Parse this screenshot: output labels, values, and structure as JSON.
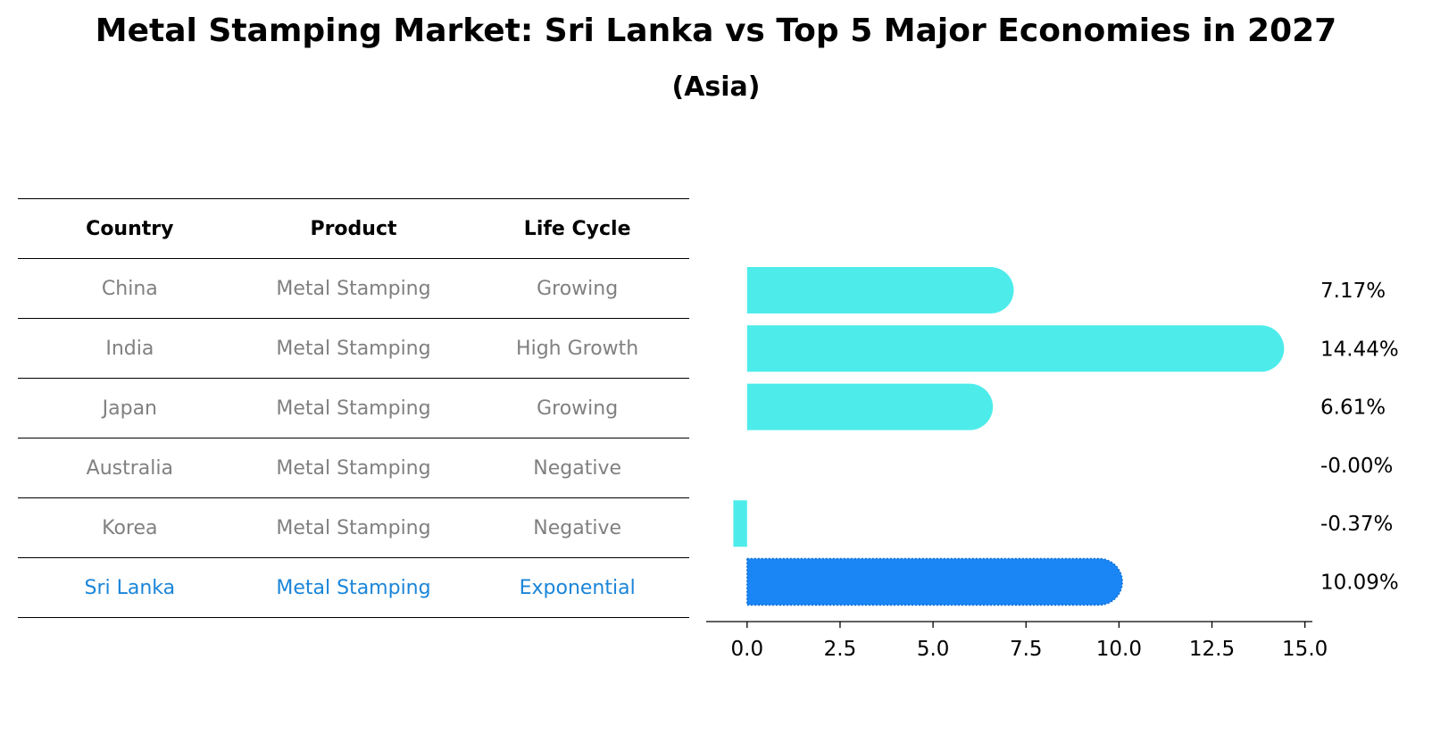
{
  "title": "Metal Stamping Market: Sri Lanka vs Top 5 Major Economies in 2027",
  "subtitle": "(Asia)",
  "table": {
    "headers": [
      "Country",
      "Product",
      "Life Cycle"
    ],
    "rows": [
      {
        "country": "China",
        "product": "Metal Stamping",
        "life_cycle": "Growing"
      },
      {
        "country": "India",
        "product": "Metal Stamping",
        "life_cycle": "High Growth"
      },
      {
        "country": "Japan",
        "product": "Metal Stamping",
        "life_cycle": "Growing"
      },
      {
        "country": "Australia",
        "product": "Metal Stamping",
        "life_cycle": "Negative"
      },
      {
        "country": "Korea",
        "product": "Metal Stamping",
        "life_cycle": "Negative"
      },
      {
        "country": "Sri Lanka",
        "product": "Metal Stamping",
        "life_cycle": "Exponential"
      }
    ]
  },
  "colors": {
    "bar": "#4deceb",
    "highlight_bar": "#1a85f5",
    "highlight_text": "#1a85d9",
    "muted_text": "#808080"
  },
  "chart_data": {
    "type": "bar",
    "orientation": "horizontal",
    "categories": [
      "China",
      "India",
      "Japan",
      "Australia",
      "Korea",
      "Sri Lanka"
    ],
    "values": [
      7.17,
      14.44,
      6.61,
      -0.0,
      -0.37,
      10.09
    ],
    "value_labels": [
      "7.17%",
      "14.44%",
      "6.61%",
      "-0.00%",
      "-0.37%",
      "10.09%"
    ],
    "highlight": "Sri Lanka",
    "xlim": [
      -1.1,
      15.2
    ],
    "xticks": [
      0.0,
      2.5,
      5.0,
      7.5,
      10.0,
      12.5,
      15.0
    ],
    "xtick_labels": [
      "0.0",
      "2.5",
      "5.0",
      "7.5",
      "10.0",
      "12.5",
      "15.0"
    ],
    "xlabel": "",
    "ylabel": ""
  }
}
